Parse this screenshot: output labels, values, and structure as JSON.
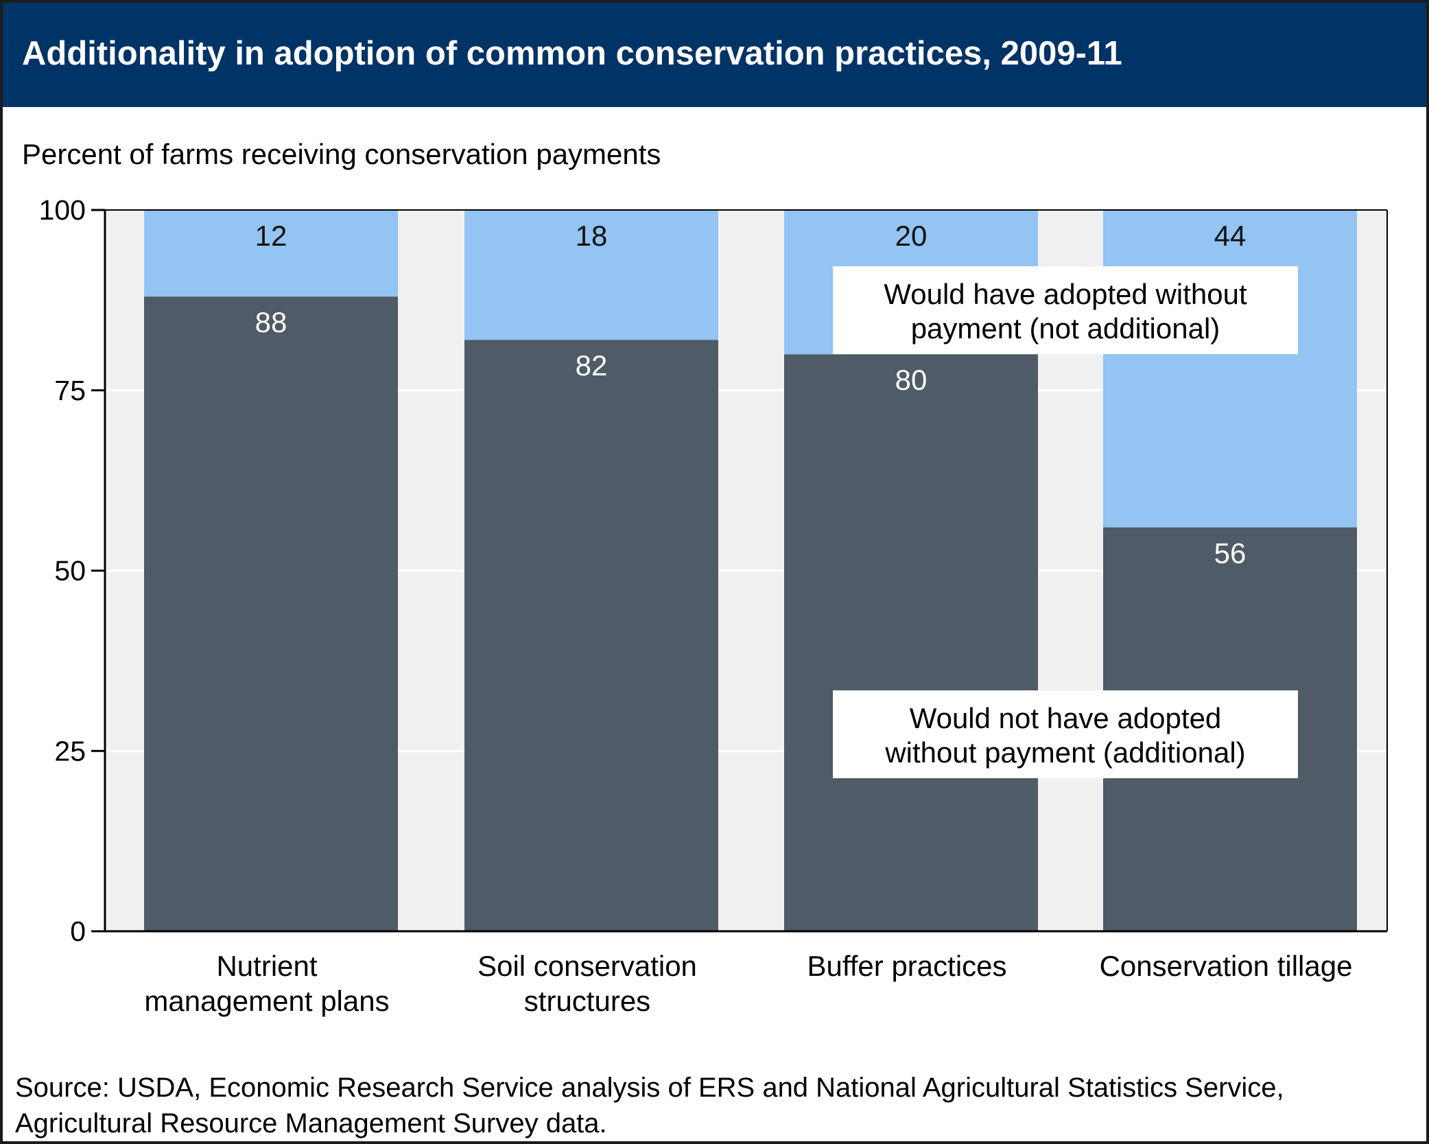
{
  "header": {
    "title": "Additionality in adoption of common conservation practices, 2009-11"
  },
  "footer": {
    "source": "Source: USDA, Economic Research Service analysis of ERS and National Agricultural Statistics Service, Agricultural Resource Management Survey data."
  },
  "colors": {
    "title_bar": "#003366",
    "additional": "#4F5B66",
    "not_additional": "#93C4F2",
    "plot_background": "#F0F0F0",
    "gridline": "#FFFFFF"
  },
  "chart_data": {
    "type": "bar",
    "stacked": true,
    "title": "Additionality in adoption of common conservation practices, 2009-11",
    "ylabel": "Percent of farms receiving conservation payments",
    "xlabel": "",
    "ylim": [
      0,
      100
    ],
    "yticks": [
      0,
      25,
      50,
      75,
      100
    ],
    "grid": true,
    "categories": [
      [
        "Nutrient",
        "management plans"
      ],
      [
        "Soil conservation",
        "structures"
      ],
      [
        "Buffer practices"
      ],
      [
        "Conservation tillage"
      ]
    ],
    "series": [
      {
        "key": "additional",
        "values": [
          88,
          82,
          80,
          56
        ]
      },
      {
        "key": "not_additional",
        "values": [
          12,
          18,
          20,
          44
        ]
      }
    ],
    "annotations": [
      {
        "series": "not_additional",
        "lines": [
          "Would have adopted without",
          "payment (not additional)"
        ]
      },
      {
        "series": "additional",
        "lines": [
          "Would not have adopted",
          "without payment (additional)"
        ]
      }
    ]
  }
}
